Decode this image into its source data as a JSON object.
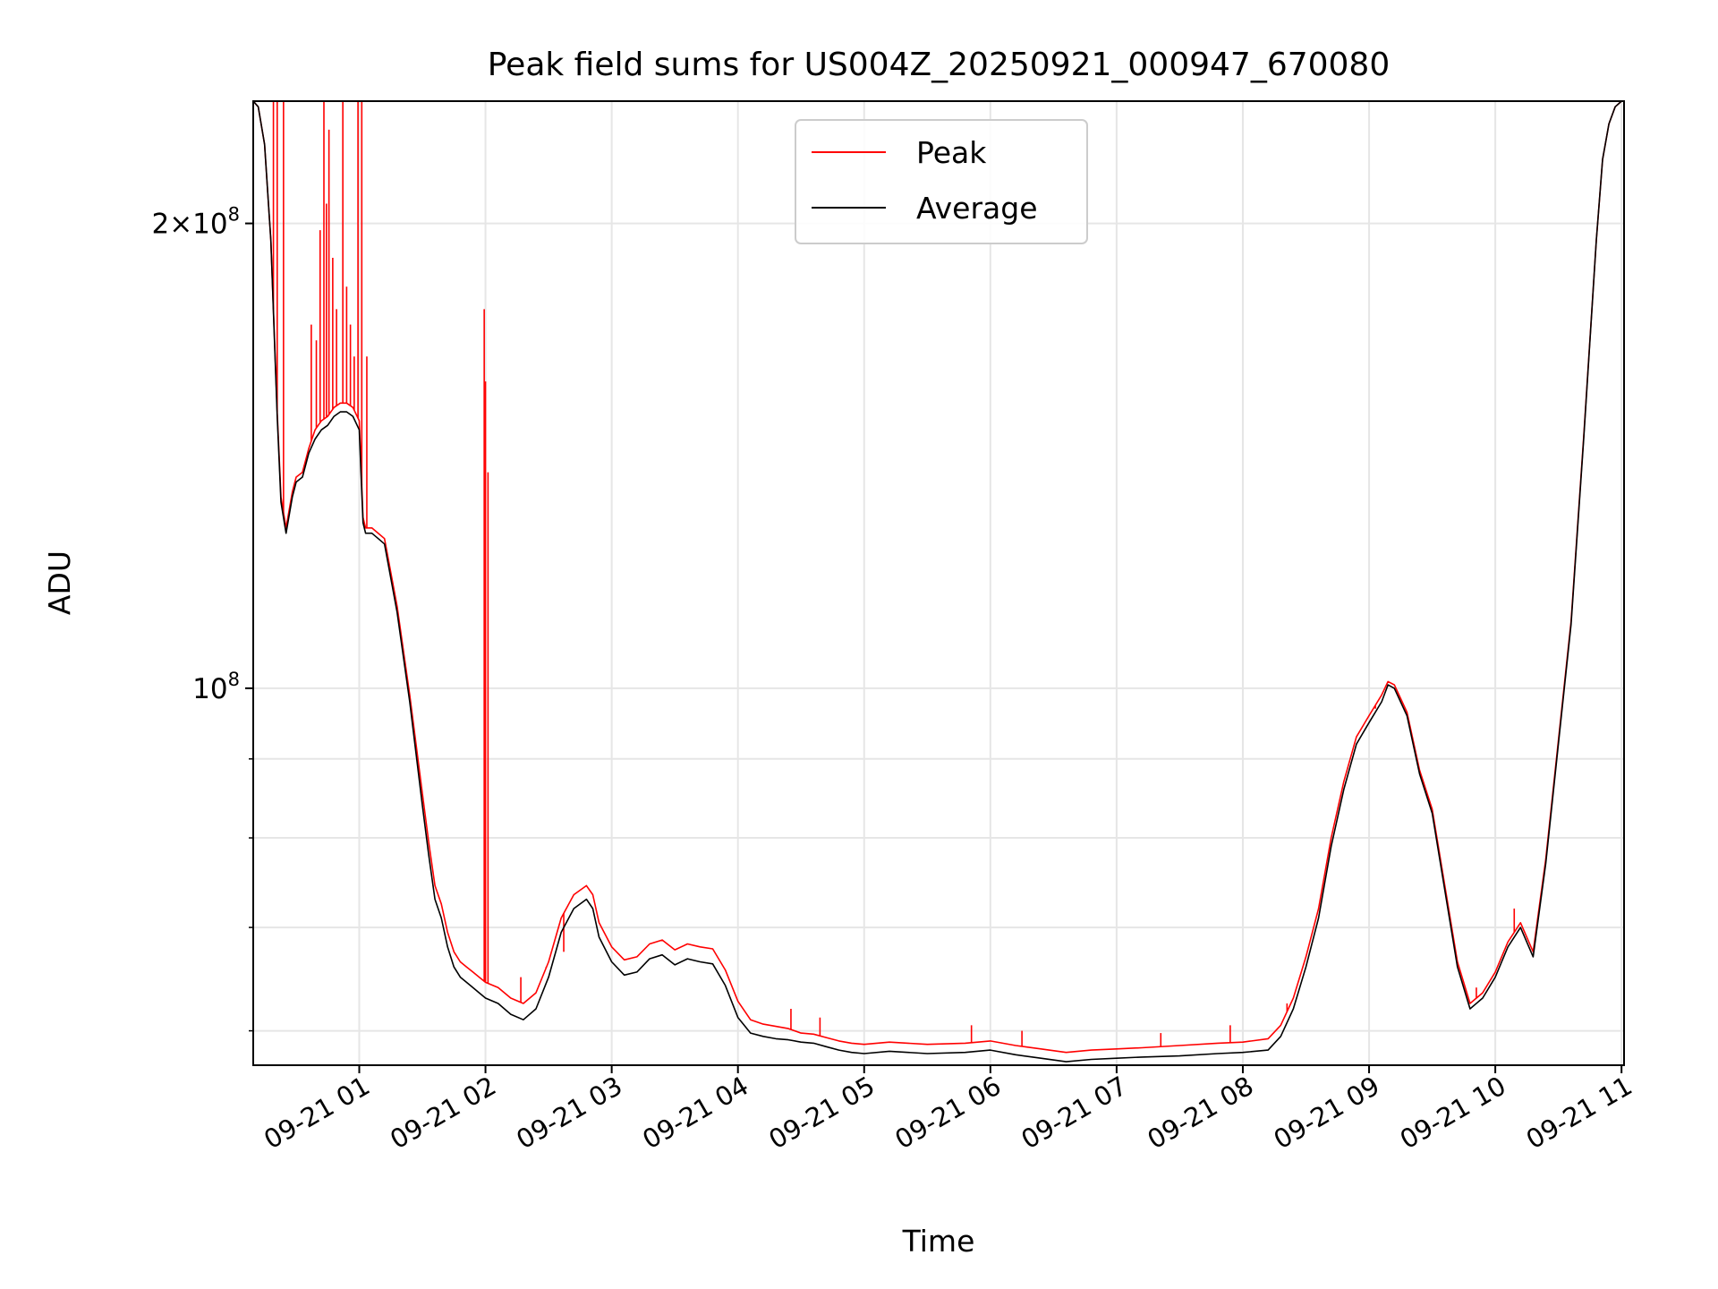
{
  "chart_data": {
    "type": "line",
    "title": "Peak field sums for US004Z_20250921_000947_670080",
    "xlabel": "Time",
    "ylabel": "ADU",
    "y_scale": "log",
    "ylim": [
      57000000,
      240000000
    ],
    "xlim_hours": [
      0.16,
      11.02
    ],
    "grid": true,
    "legend_position": "top-center",
    "x_ticks": [
      {
        "hour": 1,
        "label": "09-21 01"
      },
      {
        "hour": 2,
        "label": "09-21 02"
      },
      {
        "hour": 3,
        "label": "09-21 03"
      },
      {
        "hour": 4,
        "label": "09-21 04"
      },
      {
        "hour": 5,
        "label": "09-21 05"
      },
      {
        "hour": 6,
        "label": "09-21 06"
      },
      {
        "hour": 7,
        "label": "09-21 07"
      },
      {
        "hour": 8,
        "label": "09-21 08"
      },
      {
        "hour": 9,
        "label": "09-21 09"
      },
      {
        "hour": 10,
        "label": "09-21 10"
      },
      {
        "hour": 11,
        "label": "09-21 11"
      }
    ],
    "y_major_ticks": [
      {
        "value": 100000000,
        "base": "10",
        "exp": "8",
        "label": "10^8"
      },
      {
        "value": 200000000,
        "coef": "2",
        "base": "10",
        "exp": "8",
        "label": "2×10^8"
      }
    ],
    "y_minor_ticks": [
      60000000,
      70000000,
      80000000,
      90000000
    ],
    "series": [
      {
        "name": "Average",
        "color": "#000000",
        "x_hours": [
          0.16,
          0.2,
          0.25,
          0.3,
          0.35,
          0.38,
          0.42,
          0.47,
          0.5,
          0.55,
          0.6,
          0.65,
          0.7,
          0.75,
          0.8,
          0.85,
          0.9,
          0.95,
          1.0,
          1.03,
          1.05,
          1.1,
          1.15,
          1.2,
          1.3,
          1.4,
          1.5,
          1.55,
          1.6,
          1.65,
          1.7,
          1.75,
          1.8,
          1.85,
          1.9,
          1.95,
          2.0,
          2.1,
          2.2,
          2.3,
          2.4,
          2.5,
          2.6,
          2.7,
          2.8,
          2.85,
          2.9,
          3.0,
          3.1,
          3.2,
          3.3,
          3.4,
          3.5,
          3.6,
          3.7,
          3.8,
          3.9,
          4.0,
          4.1,
          4.2,
          4.3,
          4.4,
          4.5,
          4.6,
          4.7,
          4.8,
          4.9,
          5.0,
          5.2,
          5.5,
          5.8,
          6.0,
          6.2,
          6.4,
          6.6,
          6.8,
          7.0,
          7.2,
          7.5,
          7.8,
          8.0,
          8.2,
          8.3,
          8.4,
          8.5,
          8.6,
          8.7,
          8.8,
          8.9,
          9.0,
          9.1,
          9.15,
          9.2,
          9.3,
          9.4,
          9.5,
          9.6,
          9.7,
          9.8,
          9.9,
          10.0,
          10.1,
          10.2,
          10.3,
          10.4,
          10.5,
          10.6,
          10.7,
          10.8,
          10.85,
          10.9,
          10.95,
          11.0,
          11.02
        ],
        "values": [
          240000000,
          238000000,
          225000000,
          195000000,
          150000000,
          132000000,
          126000000,
          133000000,
          136000000,
          137000000,
          142000000,
          145000000,
          147000000,
          148000000,
          150000000,
          151000000,
          151000000,
          150000000,
          147000000,
          128000000,
          126000000,
          126000000,
          125000000,
          124000000,
          112000000,
          98000000,
          84000000,
          78000000,
          73000000,
          71000000,
          68000000,
          66000000,
          65000000,
          64500000,
          64000000,
          63500000,
          63000000,
          62500000,
          61500000,
          61000000,
          62000000,
          65000000,
          69500000,
          72000000,
          73000000,
          72000000,
          69000000,
          66500000,
          65200000,
          65500000,
          66800000,
          67200000,
          66200000,
          66800000,
          66500000,
          66300000,
          64200000,
          61200000,
          59800000,
          59500000,
          59300000,
          59200000,
          59000000,
          58900000,
          58600000,
          58300000,
          58100000,
          58000000,
          58200000,
          58000000,
          58100000,
          58300000,
          57900000,
          57600000,
          57300000,
          57500000,
          57600000,
          57700000,
          57800000,
          58000000,
          58100000,
          58300000,
          59500000,
          62000000,
          66000000,
          71000000,
          79000000,
          86000000,
          92000000,
          95000000,
          98000000,
          100500000,
          100000000,
          96000000,
          88000000,
          83000000,
          74000000,
          66000000,
          62000000,
          63000000,
          65000000,
          68000000,
          70000000,
          67000000,
          77000000,
          92000000,
          110000000,
          145000000,
          195000000,
          220000000,
          232000000,
          238000000,
          240000000,
          240000000
        ]
      },
      {
        "name": "Peak",
        "color": "#ff0000",
        "x_hours": [
          0.16,
          0.2,
          0.25,
          0.3,
          0.35,
          0.38,
          0.42,
          0.47,
          0.5,
          0.55,
          0.6,
          0.65,
          0.7,
          0.75,
          0.8,
          0.85,
          0.9,
          0.95,
          1.0,
          1.03,
          1.05,
          1.1,
          1.15,
          1.2,
          1.3,
          1.4,
          1.5,
          1.55,
          1.6,
          1.65,
          1.7,
          1.75,
          1.8,
          1.85,
          1.9,
          1.95,
          2.0,
          2.1,
          2.2,
          2.3,
          2.4,
          2.5,
          2.6,
          2.7,
          2.8,
          2.85,
          2.9,
          3.0,
          3.1,
          3.2,
          3.3,
          3.4,
          3.5,
          3.6,
          3.7,
          3.8,
          3.9,
          4.0,
          4.1,
          4.2,
          4.3,
          4.4,
          4.5,
          4.6,
          4.7,
          4.8,
          4.9,
          5.0,
          5.2,
          5.5,
          5.8,
          6.0,
          6.2,
          6.4,
          6.6,
          6.8,
          7.0,
          7.2,
          7.5,
          7.8,
          8.0,
          8.2,
          8.3,
          8.4,
          8.5,
          8.6,
          8.7,
          8.8,
          8.9,
          9.0,
          9.1,
          9.15,
          9.2,
          9.3,
          9.4,
          9.5,
          9.6,
          9.7,
          9.8,
          9.9,
          10.0,
          10.1,
          10.2,
          10.3,
          10.4,
          10.5,
          10.6,
          10.7,
          10.8,
          10.85,
          10.9,
          10.95,
          11.0,
          11.02
        ],
        "values": [
          240000000,
          238000000,
          225000000,
          195000000,
          151000000,
          133000000,
          127000000,
          134000000,
          137000000,
          138000000,
          143000000,
          147000000,
          149000000,
          150000000,
          152000000,
          153000000,
          153000000,
          152000000,
          149000000,
          129000000,
          127000000,
          127000000,
          126000000,
          125000000,
          113000000,
          99000000,
          85500000,
          79500000,
          74500000,
          72500000,
          69500000,
          67500000,
          66500000,
          66000000,
          65500000,
          65000000,
          64500000,
          64000000,
          63000000,
          62500000,
          63500000,
          66500000,
          71000000,
          73500000,
          74500000,
          73500000,
          70500000,
          68000000,
          66700000,
          67000000,
          68300000,
          68700000,
          67700000,
          68300000,
          68000000,
          67800000,
          65700000,
          62700000,
          61000000,
          60600000,
          60400000,
          60200000,
          59800000,
          59700000,
          59400000,
          59100000,
          58900000,
          58800000,
          59000000,
          58800000,
          58900000,
          59100000,
          58700000,
          58400000,
          58100000,
          58300000,
          58400000,
          58500000,
          58700000,
          58900000,
          59000000,
          59300000,
          60500000,
          63000000,
          67000000,
          72000000,
          80000000,
          87000000,
          93000000,
          96000000,
          99000000,
          101000000,
          100500000,
          96500000,
          88500000,
          83500000,
          74500000,
          66500000,
          62500000,
          63500000,
          65500000,
          68500000,
          70500000,
          67500000,
          77500000,
          92500000,
          110500000,
          145500000,
          195000000,
          220000000,
          232000000,
          238000000,
          240000000,
          240000000
        ],
        "spikes": [
          {
            "x_hour": 0.32,
            "value": 240000000
          },
          {
            "x_hour": 0.35,
            "value": 240000000
          },
          {
            "x_hour": 0.4,
            "value": 240000000
          },
          {
            "x_hour": 0.62,
            "value": 172000000
          },
          {
            "x_hour": 0.66,
            "value": 168000000
          },
          {
            "x_hour": 0.69,
            "value": 198000000
          },
          {
            "x_hour": 0.72,
            "value": 240000000
          },
          {
            "x_hour": 0.74,
            "value": 206000000
          },
          {
            "x_hour": 0.76,
            "value": 230000000
          },
          {
            "x_hour": 0.79,
            "value": 190000000
          },
          {
            "x_hour": 0.82,
            "value": 176000000
          },
          {
            "x_hour": 0.87,
            "value": 240000000
          },
          {
            "x_hour": 0.9,
            "value": 182000000
          },
          {
            "x_hour": 0.93,
            "value": 172000000
          },
          {
            "x_hour": 0.96,
            "value": 164000000
          },
          {
            "x_hour": 0.99,
            "value": 240000000
          },
          {
            "x_hour": 1.02,
            "value": 240000000
          },
          {
            "x_hour": 1.06,
            "value": 164000000
          },
          {
            "x_hour": 1.99,
            "value": 176000000
          },
          {
            "x_hour": 2.0,
            "value": 158000000
          },
          {
            "x_hour": 2.02,
            "value": 138000000
          },
          {
            "x_hour": 2.28,
            "value": 65000000
          },
          {
            "x_hour": 2.48,
            "value": 66000000
          },
          {
            "x_hour": 2.62,
            "value": 67500000
          },
          {
            "x_hour": 4.42,
            "value": 62000000
          },
          {
            "x_hour": 4.65,
            "value": 61200000
          },
          {
            "x_hour": 5.85,
            "value": 60500000
          },
          {
            "x_hour": 6.25,
            "value": 60000000
          },
          {
            "x_hour": 7.35,
            "value": 59800000
          },
          {
            "x_hour": 7.9,
            "value": 60500000
          },
          {
            "x_hour": 8.35,
            "value": 62500000
          },
          {
            "x_hour": 9.05,
            "value": 97000000
          },
          {
            "x_hour": 9.5,
            "value": 83500000
          },
          {
            "x_hour": 9.85,
            "value": 64000000
          },
          {
            "x_hour": 10.15,
            "value": 72000000
          }
        ]
      }
    ]
  }
}
